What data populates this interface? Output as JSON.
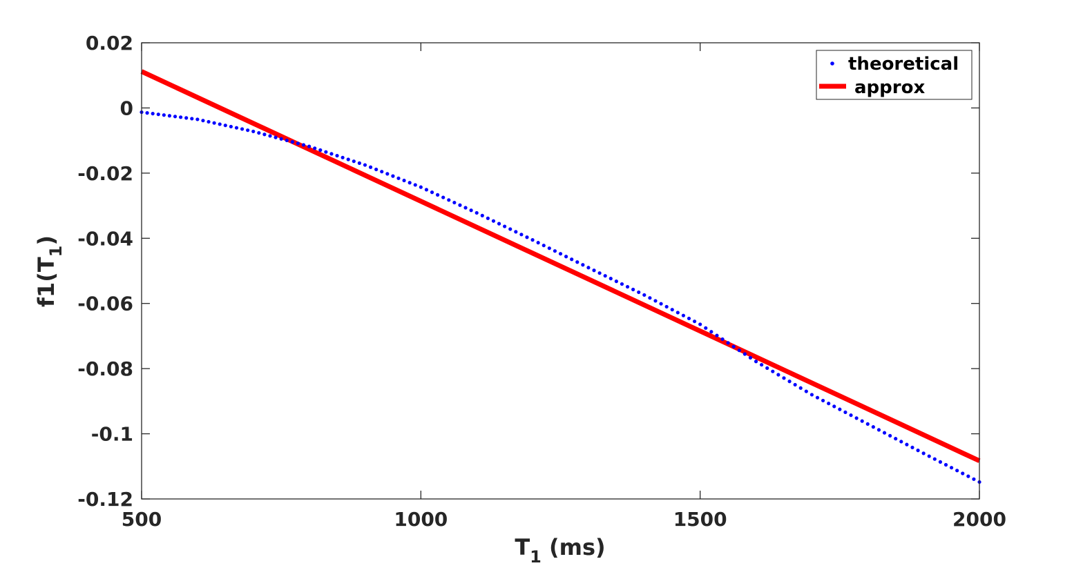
{
  "chart_data": {
    "type": "line",
    "title": "",
    "xlabel_main": "T",
    "xlabel_sub": "1",
    "xlabel_tail": " (ms)",
    "ylabel_main": "f1(T",
    "ylabel_sub": "1",
    "ylabel_tail": ")",
    "xlim": [
      500,
      2000
    ],
    "ylim": [
      -0.12,
      0.02
    ],
    "xticks": [
      500,
      1000,
      1500,
      2000
    ],
    "xtick_labels": [
      "500",
      "1000",
      "1500",
      "2000"
    ],
    "yticks": [
      0.02,
      0,
      -0.02,
      -0.04,
      -0.06,
      -0.08,
      -0.1,
      -0.12
    ],
    "ytick_labels": [
      "0.02",
      "0",
      "-0.02",
      "-0.04",
      "-0.06",
      "-0.08",
      "-0.1",
      "-0.12"
    ],
    "grid": false,
    "legend_position": "top-right",
    "series": [
      {
        "name": "theoretical",
        "style": "dots",
        "color": "#0000ff",
        "x_start": 500,
        "x_end": 2000,
        "x_step": 10,
        "points": [
          [
            500,
            -0.0013
          ],
          [
            600,
            -0.0035
          ],
          [
            700,
            -0.0072
          ],
          [
            800,
            -0.0118
          ],
          [
            900,
            -0.0175
          ],
          [
            1000,
            -0.0243
          ],
          [
            1100,
            -0.0322
          ],
          [
            1200,
            -0.0405
          ],
          [
            1300,
            -0.049
          ],
          [
            1400,
            -0.0574
          ],
          [
            1500,
            -0.0664
          ],
          [
            1600,
            -0.0778
          ],
          [
            1700,
            -0.088
          ],
          [
            1800,
            -0.097
          ],
          [
            1900,
            -0.106
          ],
          [
            2000,
            -0.1148
          ]
        ]
      },
      {
        "name": "approx",
        "style": "line",
        "color": "#ff0000",
        "points": [
          [
            500,
            0.0112
          ],
          [
            2000,
            -0.1083
          ]
        ]
      }
    ]
  }
}
